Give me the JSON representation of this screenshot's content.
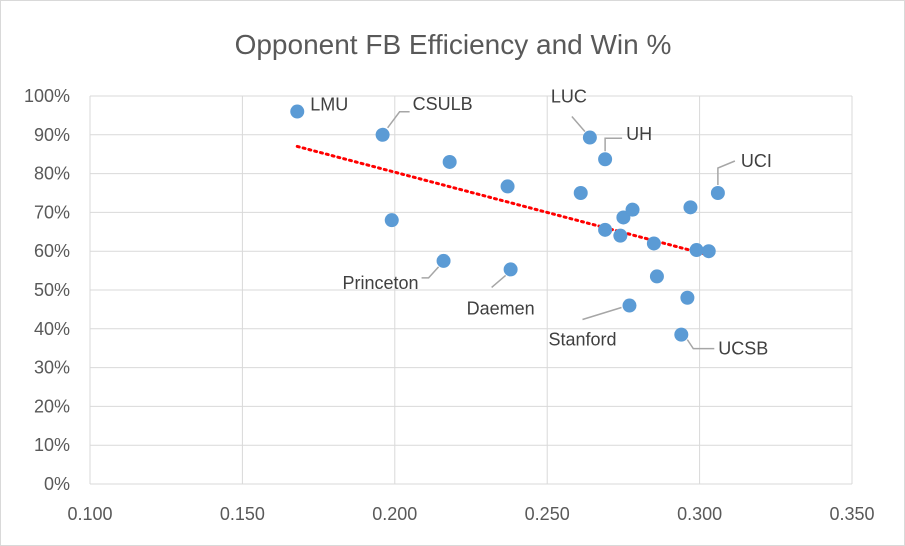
{
  "chart_data": {
    "type": "scatter",
    "title": "Opponent FB Efficiency and Win %",
    "xlabel": "",
    "ylabel": "",
    "xlim": [
      0.1,
      0.35
    ],
    "ylim": [
      0,
      1
    ],
    "x_ticks": [
      "0.100",
      "0.150",
      "0.200",
      "0.250",
      "0.300",
      "0.350"
    ],
    "y_ticks": [
      "0%",
      "10%",
      "20%",
      "30%",
      "40%",
      "50%",
      "60%",
      "70%",
      "80%",
      "90%",
      "100%"
    ],
    "grid": true,
    "marker_color": "#5b9bd5",
    "trendline": {
      "style": "dotted",
      "color": "#ff0000",
      "x": [
        0.168,
        0.303
      ],
      "y": [
        0.87,
        0.59
      ]
    },
    "points": [
      {
        "x": 0.168,
        "y": 0.96,
        "label": "LMU"
      },
      {
        "x": 0.196,
        "y": 0.9,
        "label": "CSULB"
      },
      {
        "x": 0.218,
        "y": 0.83,
        "label": ""
      },
      {
        "x": 0.199,
        "y": 0.68,
        "label": ""
      },
      {
        "x": 0.216,
        "y": 0.575,
        "label": "Princeton"
      },
      {
        "x": 0.237,
        "y": 0.767,
        "label": ""
      },
      {
        "x": 0.238,
        "y": 0.553,
        "label": "Daemen"
      },
      {
        "x": 0.261,
        "y": 0.75,
        "label": ""
      },
      {
        "x": 0.264,
        "y": 0.893,
        "label": "LUC"
      },
      {
        "x": 0.269,
        "y": 0.837,
        "label": "UH"
      },
      {
        "x": 0.269,
        "y": 0.655,
        "label": ""
      },
      {
        "x": 0.274,
        "y": 0.64,
        "label": ""
      },
      {
        "x": 0.275,
        "y": 0.687,
        "label": ""
      },
      {
        "x": 0.277,
        "y": 0.46,
        "label": "Stanford"
      },
      {
        "x": 0.278,
        "y": 0.707,
        "label": ""
      },
      {
        "x": 0.285,
        "y": 0.62,
        "label": ""
      },
      {
        "x": 0.286,
        "y": 0.535,
        "label": ""
      },
      {
        "x": 0.294,
        "y": 0.385,
        "label": "UCSB"
      },
      {
        "x": 0.296,
        "y": 0.48,
        "label": ""
      },
      {
        "x": 0.297,
        "y": 0.713,
        "label": ""
      },
      {
        "x": 0.299,
        "y": 0.603,
        "label": ""
      },
      {
        "x": 0.303,
        "y": 0.6,
        "label": ""
      },
      {
        "x": 0.306,
        "y": 0.75,
        "label": "UCI"
      }
    ]
  }
}
